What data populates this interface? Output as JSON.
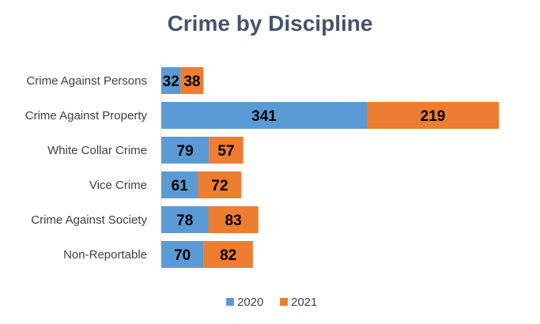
{
  "chart_data": {
    "type": "bar",
    "orientation": "horizontal",
    "stacked": true,
    "title": "Crime by Discipline",
    "categories": [
      "Crime Against Persons",
      "Crime Against Property",
      "White Collar Crime",
      "Vice Crime",
      "Crime Against Society",
      "Non-Reportable"
    ],
    "series": [
      {
        "name": "2020",
        "values": [
          32,
          341,
          79,
          61,
          78,
          70
        ],
        "color": "#5b9bd5"
      },
      {
        "name": "2021",
        "values": [
          38,
          219,
          57,
          72,
          83,
          82
        ],
        "color": "#ed7d31"
      }
    ],
    "xlim": [
      0,
      600
    ],
    "grid": false,
    "data_labels": true,
    "legend_position": "bottom"
  }
}
